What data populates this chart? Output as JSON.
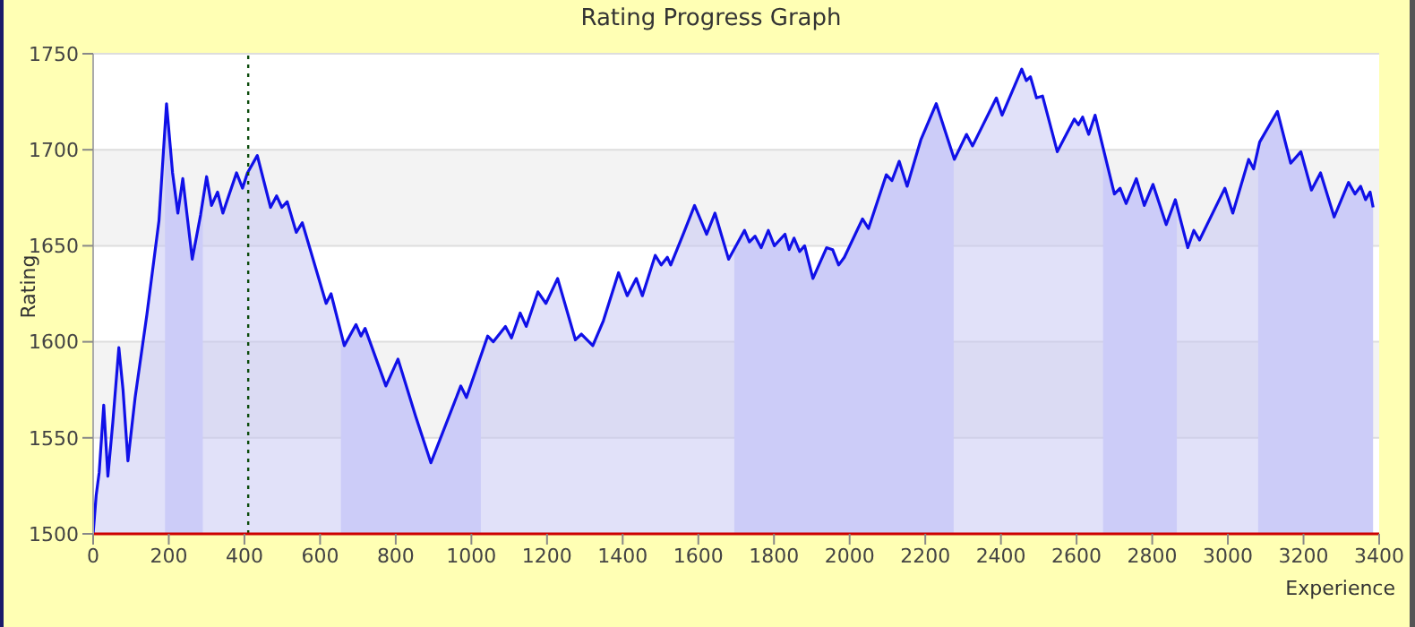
{
  "chart_data": {
    "type": "area",
    "title": "Rating Progress Graph",
    "xlabel": "Experience",
    "ylabel": "Rating",
    "x": [
      0,
      8,
      16,
      28,
      39,
      52,
      68,
      79,
      92,
      111,
      142,
      174,
      194,
      210,
      224,
      237,
      262,
      284,
      300,
      313,
      329,
      343,
      379,
      395,
      408,
      434,
      469,
      485,
      499,
      513,
      537,
      553,
      616,
      629,
      664,
      695,
      708,
      719,
      774,
      806,
      853,
      893,
      972,
      987,
      1043,
      1058,
      1090,
      1106,
      1129,
      1145,
      1176,
      1197,
      1228,
      1275,
      1291,
      1321,
      1349,
      1389,
      1412,
      1436,
      1452,
      1486,
      1502,
      1518,
      1527,
      1562,
      1590,
      1622,
      1644,
      1680,
      1722,
      1735,
      1750,
      1766,
      1785,
      1801,
      1829,
      1840,
      1853,
      1868,
      1881,
      1903,
      1939,
      1955,
      1971,
      1986,
      2034,
      2050,
      2097,
      2112,
      2131,
      2152,
      2188,
      2229,
      2277,
      2309,
      2325,
      2388,
      2403,
      2455,
      2467,
      2478,
      2494,
      2510,
      2549,
      2594,
      2605,
      2616,
      2632,
      2649,
      2700,
      2715,
      2731,
      2758,
      2779,
      2802,
      2837,
      2861,
      2894,
      2910,
      2925,
      2992,
      3013,
      3055,
      3068,
      3084,
      3131,
      3166,
      3193,
      3221,
      3245,
      3281,
      3319,
      3336,
      3351,
      3364,
      3376,
      3384
    ],
    "series": [
      {
        "color": "#1010e8",
        "values": [
          1500,
          1520,
          1532,
          1567,
          1530,
          1558,
          1597,
          1575,
          1538,
          1571,
          1614,
          1663,
          1724,
          1688,
          1667,
          1685,
          1643,
          1666,
          1686,
          1671,
          1678,
          1667,
          1688,
          1680,
          1688,
          1697,
          1670,
          1676,
          1670,
          1673,
          1657,
          1662,
          1620,
          1625,
          1598,
          1609,
          1603,
          1607,
          1577,
          1591,
          1561,
          1537,
          1577,
          1571,
          1603,
          1600,
          1608,
          1602,
          1615,
          1608,
          1626,
          1620,
          1633,
          1601,
          1604,
          1598,
          1611,
          1636,
          1624,
          1633,
          1624,
          1645,
          1640,
          1644,
          1640,
          1657,
          1671,
          1656,
          1667,
          1643,
          1658,
          1652,
          1655,
          1649,
          1658,
          1650,
          1656,
          1648,
          1654,
          1647,
          1650,
          1633,
          1649,
          1648,
          1640,
          1644,
          1664,
          1659,
          1687,
          1684,
          1694,
          1681,
          1705,
          1724,
          1695,
          1708,
          1702,
          1727,
          1718,
          1742,
          1736,
          1738,
          1727,
          1728,
          1699,
          1716,
          1713,
          1717,
          1708,
          1718,
          1677,
          1680,
          1672,
          1685,
          1671,
          1682,
          1661,
          1674,
          1649,
          1658,
          1653,
          1680,
          1667,
          1695,
          1690,
          1704,
          1720,
          1693,
          1699,
          1679,
          1688,
          1665,
          1683,
          1677,
          1681,
          1674,
          1678,
          1670
        ]
      }
    ],
    "xlim": [
      0,
      3400
    ],
    "xticks": [
      0,
      200,
      400,
      600,
      800,
      1000,
      1200,
      1400,
      1600,
      1800,
      2000,
      2200,
      2400,
      2600,
      2800,
      3000,
      3200,
      3400
    ],
    "ylim": [
      1500,
      1750
    ],
    "yticks": [
      1500,
      1550,
      1600,
      1650,
      1700,
      1750
    ],
    "grid": "y",
    "ref_lines": [
      {
        "axis": "x",
        "value": 410,
        "color": "#0a4a0a",
        "line_style": "dotted"
      }
    ],
    "bands": [
      {
        "axis": "x",
        "from": 190,
        "to": 290,
        "color": "#d4d4fc"
      },
      {
        "axis": "x",
        "from": 655,
        "to": 1025,
        "color": "#d4d4fc"
      },
      {
        "axis": "x",
        "from": 1695,
        "to": 2275,
        "color": "#d4d4fc"
      },
      {
        "axis": "x",
        "from": 2670,
        "to": 2865,
        "color": "#d4d4fc"
      },
      {
        "axis": "x",
        "from": 3080,
        "to": 3384,
        "color": "#d4d4fc"
      }
    ]
  }
}
